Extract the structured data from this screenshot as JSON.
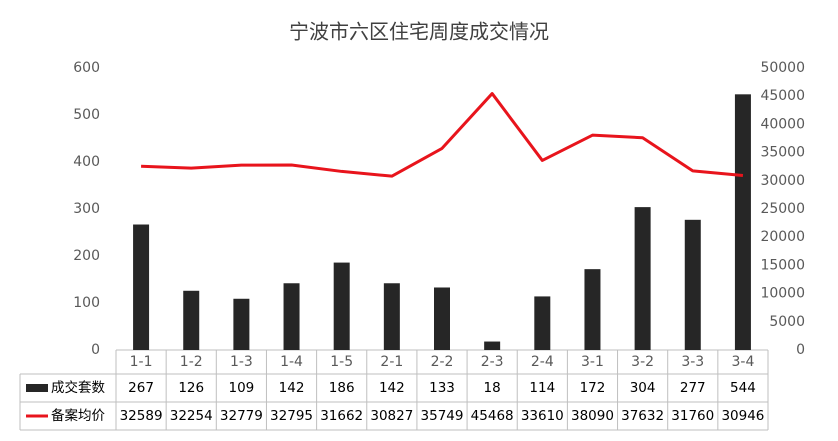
{
  "chart_data": {
    "type": "bar",
    "title": "宁波市六区住宅周度成交情况",
    "categories": [
      "1-1",
      "1-2",
      "1-3",
      "1-4",
      "1-5",
      "2-1",
      "2-2",
      "2-3",
      "2-4",
      "3-1",
      "3-2",
      "3-3",
      "3-4"
    ],
    "series": [
      {
        "name": "成交套数",
        "type": "bar",
        "color": "#262626",
        "values": [
          267,
          126,
          109,
          142,
          186,
          142,
          133,
          18,
          114,
          172,
          304,
          277,
          544
        ]
      },
      {
        "name": "备案均价",
        "type": "line",
        "axis": "y2",
        "color": "#e8141c",
        "values": [
          32589,
          32254,
          32779,
          32795,
          31662,
          30827,
          35749,
          45468,
          33610,
          38090,
          37632,
          31760,
          30946
        ]
      }
    ],
    "ylim": [
      0,
      600
    ],
    "yticks": [
      0,
      100,
      200,
      300,
      400,
      500,
      600
    ],
    "y2lim": [
      0,
      50000
    ],
    "y2ticks": [
      0,
      5000,
      10000,
      15000,
      20000,
      25000,
      30000,
      35000,
      40000,
      45000,
      50000
    ],
    "grid": false
  }
}
